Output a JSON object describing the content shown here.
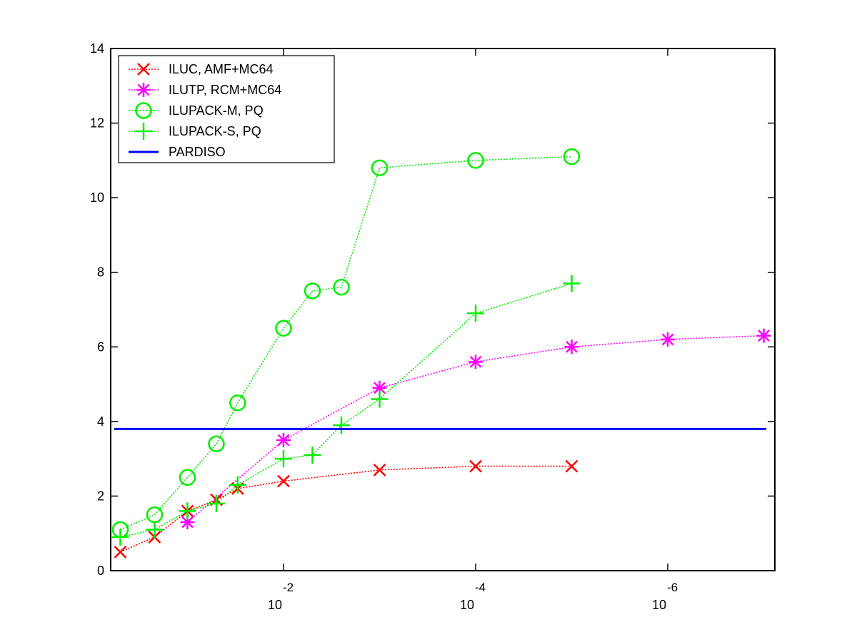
{
  "chart_data": {
    "type": "line",
    "title": "",
    "xlabel": "",
    "ylabel": "",
    "xscale": "log (reversed, decreasing left to right)",
    "xlim": [
      0.5,
      5e-08
    ],
    "ylim": [
      0,
      14
    ],
    "grid": false,
    "legend_position": "top-left",
    "x_ticks": [
      {
        "value": 0.01,
        "base": "10",
        "exp": "-2"
      },
      {
        "value": 0.0001,
        "base": "10",
        "exp": "-4"
      },
      {
        "value": 1e-06,
        "base": "10",
        "exp": "-6"
      }
    ],
    "y_ticks": [
      {
        "value": 0,
        "label": "0"
      },
      {
        "value": 2,
        "label": "2"
      },
      {
        "value": 4,
        "label": "4"
      },
      {
        "value": 6,
        "label": "6"
      },
      {
        "value": 8,
        "label": "8"
      },
      {
        "value": 10,
        "label": "10"
      },
      {
        "value": 12,
        "label": "12"
      },
      {
        "value": 14,
        "label": "14"
      }
    ],
    "series": [
      {
        "name": "ILUC, AMF+MC64",
        "color": "#ff0000",
        "marker": "x",
        "line_style": "dotted",
        "points": [
          [
            0.5,
            0.5
          ],
          [
            0.22,
            0.9
          ],
          [
            0.1,
            1.6
          ],
          [
            0.05,
            1.9
          ],
          [
            0.03,
            2.2
          ],
          [
            0.01,
            2.4
          ],
          [
            0.001,
            2.7
          ],
          [
            0.0001,
            2.8
          ],
          [
            1e-05,
            2.8
          ]
        ]
      },
      {
        "name": "ILUTP, RCM+MC64",
        "color": "#ff00ff",
        "marker": "asterisk",
        "line_style": "dotted",
        "points": [
          [
            0.1,
            1.3
          ],
          [
            0.01,
            3.5
          ],
          [
            0.001,
            4.9
          ],
          [
            0.0001,
            5.6
          ],
          [
            1e-05,
            6.0
          ],
          [
            1e-06,
            6.2
          ],
          [
            1e-07,
            6.3
          ]
        ]
      },
      {
        "name": "ILUPACK-M, PQ",
        "color": "#00ee00",
        "marker": "circle",
        "line_style": "dotted",
        "points": [
          [
            0.5,
            1.1
          ],
          [
            0.22,
            1.5
          ],
          [
            0.1,
            2.5
          ],
          [
            0.05,
            3.4
          ],
          [
            0.03,
            4.5
          ],
          [
            0.01,
            6.5
          ],
          [
            0.005,
            7.5
          ],
          [
            0.0025,
            7.6
          ],
          [
            0.001,
            10.8
          ],
          [
            0.0001,
            11.0
          ],
          [
            1e-05,
            11.1
          ]
        ]
      },
      {
        "name": "ILUPACK-S, PQ",
        "color": "#00ee00",
        "marker": "plus",
        "line_style": "dotted",
        "points": [
          [
            0.5,
            0.9
          ],
          [
            0.22,
            1.1
          ],
          [
            0.1,
            1.6
          ],
          [
            0.05,
            1.8
          ],
          [
            0.03,
            2.3
          ],
          [
            0.01,
            3.0
          ],
          [
            0.005,
            3.1
          ],
          [
            0.0025,
            3.9
          ],
          [
            0.001,
            4.6
          ],
          [
            0.0001,
            6.9
          ],
          [
            1e-05,
            7.7
          ]
        ]
      },
      {
        "name": "PARDISO",
        "color": "#0000ff",
        "marker": "none",
        "line_style": "solid",
        "points": [
          [
            0.5,
            3.8
          ],
          [
            1e-07,
            3.8
          ]
        ]
      }
    ]
  }
}
